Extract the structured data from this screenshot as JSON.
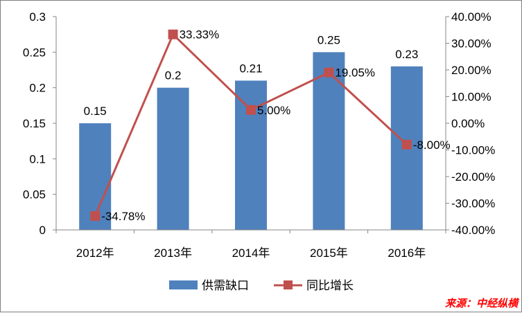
{
  "chart_data": {
    "type": "bar+line",
    "categories": [
      "2012年",
      "2013年",
      "2014年",
      "2015年",
      "2016年"
    ],
    "series": [
      {
        "name": "供需缺口",
        "type": "bar",
        "axis": "left",
        "values": [
          0.15,
          0.2,
          0.21,
          0.25,
          0.23
        ],
        "labels": [
          "0.15",
          "0.2",
          "0.21",
          "0.25",
          "0.23"
        ],
        "color": "#4f81bd"
      },
      {
        "name": "同比增长",
        "type": "line",
        "axis": "right",
        "values": [
          -34.78,
          33.33,
          5.0,
          19.05,
          -8.0
        ],
        "labels": [
          "-34.78%",
          "33.33%",
          "5.00%",
          "19.05%",
          "-8.00%"
        ],
        "color": "#c0504d"
      }
    ],
    "y_left": {
      "ylim": [
        0,
        0.3
      ],
      "ticks": [
        0,
        0.05,
        0.1,
        0.15,
        0.2,
        0.25,
        0.3
      ],
      "tick_labels": [
        "0",
        "0.05",
        "0.1",
        "0.15",
        "0.2",
        "0.25",
        "0.3"
      ]
    },
    "y_right": {
      "ylim": [
        -40,
        40
      ],
      "ticks": [
        -40,
        -30,
        -20,
        -10,
        0,
        10,
        20,
        30,
        40
      ],
      "tick_labels": [
        "-40.00%",
        "-30.00%",
        "-20.00%",
        "-10.00%",
        "0.00%",
        "10.00%",
        "20.00%",
        "30.00%",
        "40.00%"
      ]
    },
    "grid": false,
    "legend_position": "bottom"
  },
  "source": "来源：中经纵横"
}
